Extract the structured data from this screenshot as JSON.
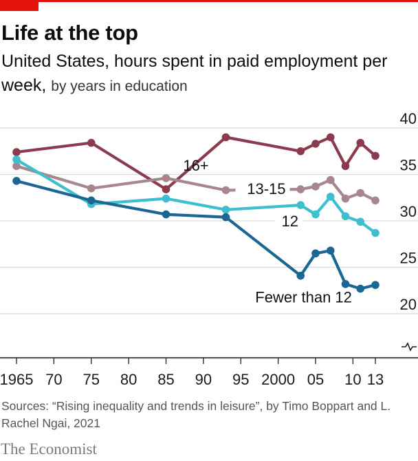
{
  "title": "Life at the top",
  "subtitle_main": "United States, hours spent in paid employment per week,",
  "subtitle_detail": "by years in education",
  "source": "Sources: “Rising inequality and trends in leisure”, by Timo Boppart and L. Rachel Ngai, 2021",
  "brand": "The Economist",
  "colors": {
    "accent": "#e3120b",
    "grid": "#d9d9d9",
    "axis": "#1a1a1a"
  },
  "chart_data": {
    "type": "line",
    "title": "Life at the top",
    "ylim": [
      20,
      40
    ],
    "xlim": [
      1965,
      2013
    ],
    "y_ticks": [
      {
        "value": 40,
        "label": "40"
      },
      {
        "value": 35,
        "label": "35"
      },
      {
        "value": 30,
        "label": "30"
      },
      {
        "value": 25,
        "label": "25"
      },
      {
        "value": 20,
        "label": "20"
      }
    ],
    "x_ticks": [
      {
        "value": 1965,
        "label": "1965"
      },
      {
        "value": 1970,
        "label": "70"
      },
      {
        "value": 1975,
        "label": "75"
      },
      {
        "value": 1980,
        "label": "80"
      },
      {
        "value": 1985,
        "label": "85"
      },
      {
        "value": 1990,
        "label": "90"
      },
      {
        "value": 1995,
        "label": "95"
      },
      {
        "value": 2000,
        "label": "2000"
      },
      {
        "value": 2005,
        "label": "05"
      },
      {
        "value": 2010,
        "label": "10"
      },
      {
        "value": 2013,
        "label": "13"
      }
    ],
    "series": [
      {
        "name": "16+",
        "color": "#8c3b4e",
        "x": [
          1965,
          1975,
          1985,
          1993,
          2003,
          2005,
          2007,
          2009,
          2011,
          2013
        ],
        "y": [
          37.4,
          38.4,
          33.4,
          39.0,
          37.5,
          38.3,
          39.0,
          35.9,
          38.4,
          37.0
        ]
      },
      {
        "name": "13-15",
        "color": "#a8868d",
        "x": [
          1965,
          1975,
          1985,
          1993,
          2003,
          2005,
          2007,
          2009,
          2011,
          2013
        ],
        "y": [
          35.9,
          33.5,
          34.6,
          33.3,
          33.4,
          33.7,
          34.4,
          32.4,
          33.0,
          32.2
        ]
      },
      {
        "name": "12",
        "color": "#3ebfcf",
        "x": [
          1965,
          1975,
          1985,
          1993,
          2003,
          2005,
          2007,
          2009,
          2011,
          2013
        ],
        "y": [
          36.6,
          31.8,
          32.4,
          31.2,
          31.7,
          30.7,
          32.6,
          30.5,
          29.9,
          28.7
        ]
      },
      {
        "name": "Fewer than 12",
        "color": "#1a6694",
        "x": [
          1965,
          1975,
          1985,
          1993,
          2003,
          2005,
          2007,
          2009,
          2011,
          2013
        ],
        "y": [
          34.3,
          32.2,
          30.7,
          30.4,
          24.1,
          26.5,
          26.8,
          23.2,
          22.7,
          23.1
        ]
      }
    ]
  }
}
